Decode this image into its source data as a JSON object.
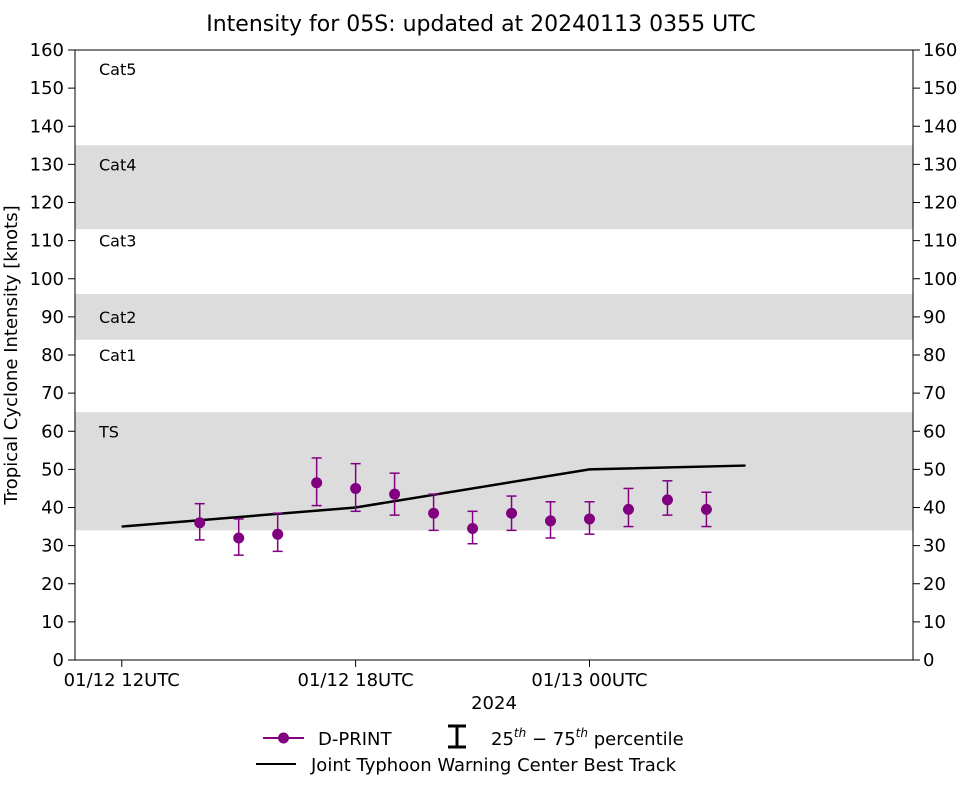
{
  "chart_data": {
    "type": "scatter",
    "title": "Intensity for 05S: updated at 20240113 0355 UTC",
    "xlabel": "2024",
    "ylabel": "Tropical Cyclone Intensity [knots]",
    "ylim": [
      0,
      160
    ],
    "y_ticks": [
      "0",
      "10",
      "20",
      "30",
      "40",
      "50",
      "60",
      "70",
      "80",
      "90",
      "100",
      "110",
      "120",
      "130",
      "140",
      "150",
      "160"
    ],
    "xlim": [
      "01/12 10:48",
      "01/13 08:18"
    ],
    "x_ticks": [
      {
        "x": "01/12 12:00",
        "label": "01/12 12UTC"
      },
      {
        "x": "01/12 18:00",
        "label": "01/12 18UTC"
      },
      {
        "x": "01/13 00:00",
        "label": "01/13 00UTC"
      }
    ],
    "grid": false,
    "category_bands": [
      {
        "label": "TS",
        "from": 34,
        "to": 65,
        "shaded": true,
        "label_y": 60
      },
      {
        "label": "Cat1",
        "from": 65,
        "to": 84,
        "shaded": false,
        "label_y": 80
      },
      {
        "label": "Cat2",
        "from": 84,
        "to": 96,
        "shaded": true,
        "label_y": 90
      },
      {
        "label": "Cat3",
        "from": 96,
        "to": 113,
        "shaded": false,
        "label_y": 110
      },
      {
        "label": "Cat4",
        "from": 113,
        "to": 135,
        "shaded": true,
        "label_y": 130
      },
      {
        "label": "Cat5",
        "from": 135,
        "to": 160,
        "shaded": false,
        "label_y": 155
      }
    ],
    "series": [
      {
        "name": "D-PRINT",
        "kind": "points_with_errorbars",
        "color": "#800080",
        "points": [
          {
            "x": "01/12 14:00",
            "y": 36,
            "p25": 31.5,
            "p75": 41
          },
          {
            "x": "01/12 15:00",
            "y": 32,
            "p25": 27.5,
            "p75": 37
          },
          {
            "x": "01/12 16:00",
            "y": 33,
            "p25": 28.5,
            "p75": 38.5
          },
          {
            "x": "01/12 17:00",
            "y": 46.5,
            "p25": 40.5,
            "p75": 53
          },
          {
            "x": "01/12 18:00",
            "y": 45,
            "p25": 39,
            "p75": 51.5
          },
          {
            "x": "01/12 19:00",
            "y": 43.5,
            "p25": 38,
            "p75": 49
          },
          {
            "x": "01/12 20:00",
            "y": 38.5,
            "p25": 34,
            "p75": 43.5
          },
          {
            "x": "01/12 21:00",
            "y": 34.5,
            "p25": 30.5,
            "p75": 39
          },
          {
            "x": "01/12 22:00",
            "y": 38.5,
            "p25": 34,
            "p75": 43
          },
          {
            "x": "01/12 23:00",
            "y": 36.5,
            "p25": 32,
            "p75": 41.5
          },
          {
            "x": "01/13 00:00",
            "y": 37,
            "p25": 33,
            "p75": 41.5
          },
          {
            "x": "01/13 01:00",
            "y": 39.5,
            "p25": 35,
            "p75": 45
          },
          {
            "x": "01/13 02:00",
            "y": 42,
            "p25": 38,
            "p75": 47
          },
          {
            "x": "01/13 03:00",
            "y": 39.5,
            "p25": 35,
            "p75": 44
          }
        ]
      },
      {
        "name": "Joint Typhoon Warning Center Best Track",
        "kind": "line",
        "color": "#000000",
        "points": [
          {
            "x": "01/12 12:00",
            "y": 35
          },
          {
            "x": "01/12 18:00",
            "y": 40
          },
          {
            "x": "01/13 00:00",
            "y": 50
          },
          {
            "x": "01/13 04:00",
            "y": 51
          }
        ]
      }
    ],
    "legend": {
      "placement": "bottom-center",
      "dprint_label": "D-PRINT",
      "errorbar_label_pre": "25",
      "errorbar_label_sup1": "th",
      "errorbar_label_mid": " − 75",
      "errorbar_label_sup2": "th",
      "errorbar_label_post": " percentile",
      "best_track_label": "Joint Typhoon Warning Center Best Track"
    },
    "colors": {
      "band": "#dcdcdc",
      "dprint": "#800080",
      "best_track": "#000000"
    }
  }
}
